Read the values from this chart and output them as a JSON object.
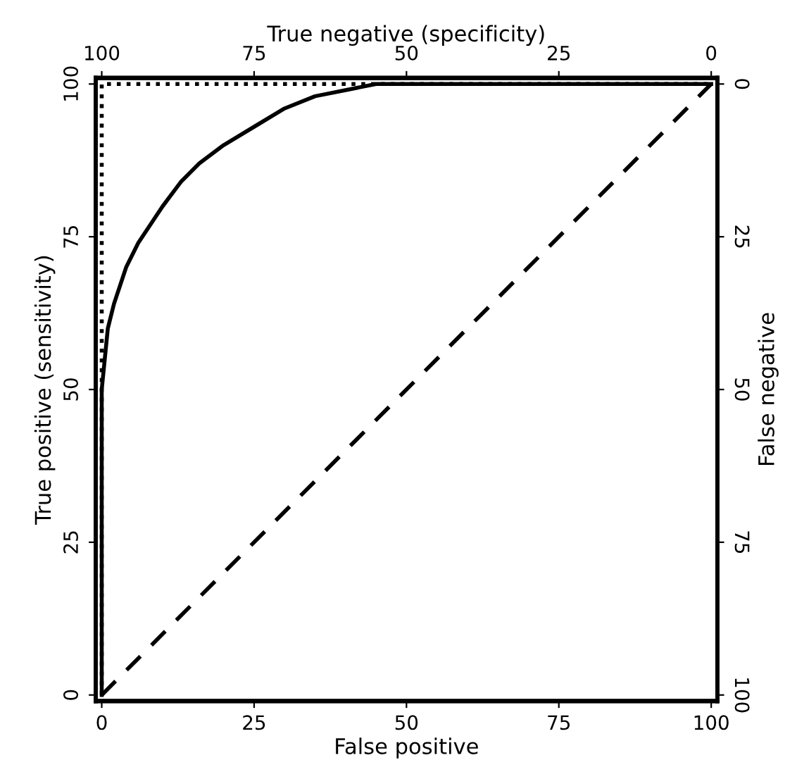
{
  "chart_data": {
    "type": "line",
    "xlabel": "False positive",
    "ylabel": "True positive (sensitivity)",
    "x2label": "True negative (specificity)",
    "y2label": "False negative",
    "xlim": [
      -1,
      101
    ],
    "ylim": [
      -1,
      101
    ],
    "x2lim": [
      101,
      -1
    ],
    "y2lim": [
      101,
      -1
    ],
    "xticks": [
      0,
      25,
      50,
      75,
      100
    ],
    "yticks": [
      0,
      25,
      50,
      75,
      100
    ],
    "x2ticks": [
      100,
      75,
      50,
      25,
      0
    ],
    "y2ticks": [
      0,
      25,
      50,
      75,
      100
    ],
    "grid": false,
    "legend": false,
    "series": [
      {
        "color": "#000000",
        "line_style": "solid",
        "x": [
          0,
          0,
          1,
          2,
          4,
          6,
          8,
          10,
          13,
          16,
          20,
          25,
          30,
          35,
          40,
          45,
          50,
          100
        ],
        "values": [
          0,
          50,
          60,
          64,
          70,
          74,
          77,
          80,
          84,
          87,
          90,
          93,
          96,
          98,
          99,
          100,
          100,
          100
        ]
      },
      {
        "color": "#000000",
        "line_style": "dotted",
        "x": [
          0,
          0,
          100
        ],
        "values": [
          0,
          100,
          100
        ]
      },
      {
        "color": "#000000",
        "line_style": "dashed",
        "x": [
          0,
          100
        ],
        "values": [
          0,
          100
        ]
      }
    ]
  }
}
